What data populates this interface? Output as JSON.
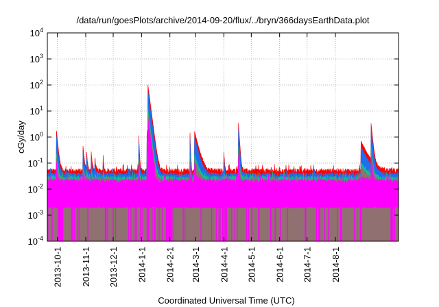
{
  "chart_data": {
    "type": "area",
    "title": "/data/run/goesPlots/archive/2014-09-20/flux/../bryn/366daysEarthData.plot",
    "xlabel": "Coordinated Universal Time (UTC)",
    "ylabel": "cGy/day",
    "yscale": "log",
    "ylim": [
      0.0001,
      10000
    ],
    "xlim": [
      "2013-09-20",
      "2014-10-08"
    ],
    "grid": true,
    "y_ticks": [
      {
        "base": "10",
        "exp": "4",
        "value": 10000
      },
      {
        "base": "10",
        "exp": "3",
        "value": 1000
      },
      {
        "base": "10",
        "exp": "2",
        "value": 100
      },
      {
        "base": "10",
        "exp": "1",
        "value": 10
      },
      {
        "base": "10",
        "exp": "0",
        "value": 1
      },
      {
        "base": "10",
        "exp": "-1",
        "value": 0.1
      },
      {
        "base": "10",
        "exp": "-2",
        "value": 0.01
      },
      {
        "base": "10",
        "exp": "-3",
        "value": 0.001
      },
      {
        "base": "10",
        "exp": "-4",
        "value": 0.0001
      }
    ],
    "x_ticks": [
      "2013-10-1",
      "2013-11-1",
      "2013-12-1",
      "2014-1-1",
      "2014-2-1",
      "2014-3-1",
      "2014-4-1",
      "2014-5-1",
      "2014-6-1",
      "2014-7-1",
      "2014-8-1"
    ],
    "x_tick_days": [
      11,
      42,
      72,
      103,
      134,
      162,
      193,
      223,
      254,
      284,
      315
    ],
    "total_days": 384,
    "series": [
      {
        "name": "red",
        "color": "#ff0000",
        "baseline": 0.05,
        "scale": 1.0
      },
      {
        "name": "blue",
        "color": "#1e6ef0",
        "baseline": 0.035,
        "scale": 0.6
      },
      {
        "name": "green",
        "color": "#10c090",
        "baseline": 0.026,
        "scale": 0.12
      },
      {
        "name": "gray",
        "color": "#907070",
        "baseline": 0.021,
        "scale": 0.08
      },
      {
        "name": "magenta",
        "color": "#ff00ff",
        "baseline": 0.02,
        "scale": 0.05,
        "floor": 0.0022,
        "dropout_min": 0.0001
      }
    ],
    "events": [
      {
        "day": 10,
        "peak": 1.7,
        "tau": 1.2
      },
      {
        "day": 39,
        "peak": 0.4,
        "tau": 1.0
      },
      {
        "day": 43,
        "peak": 0.2,
        "tau": 0.8
      },
      {
        "day": 48,
        "peak": 0.22,
        "tau": 0.8
      },
      {
        "day": 52,
        "peak": 0.1,
        "tau": 0.8
      },
      {
        "day": 61,
        "peak": 0.16,
        "tau": 0.5
      },
      {
        "day": 100,
        "peak": 1.1,
        "tau": 0.5
      },
      {
        "day": 109,
        "peak": 1.8,
        "tau": 0.5
      },
      {
        "day": 110,
        "peak": 100,
        "tau": 1.6
      },
      {
        "day": 156,
        "peak": 1.4,
        "tau": 0.4
      },
      {
        "day": 161,
        "peak": 1.6,
        "tau": 3.0
      },
      {
        "day": 193,
        "peak": 0.22,
        "tau": 0.5
      },
      {
        "day": 209,
        "peak": 3.4,
        "tau": 0.8
      },
      {
        "day": 343,
        "peak": 0.65,
        "tau": 5.5
      },
      {
        "day": 354,
        "peak": 3.2,
        "tau": 1.2
      }
    ]
  }
}
